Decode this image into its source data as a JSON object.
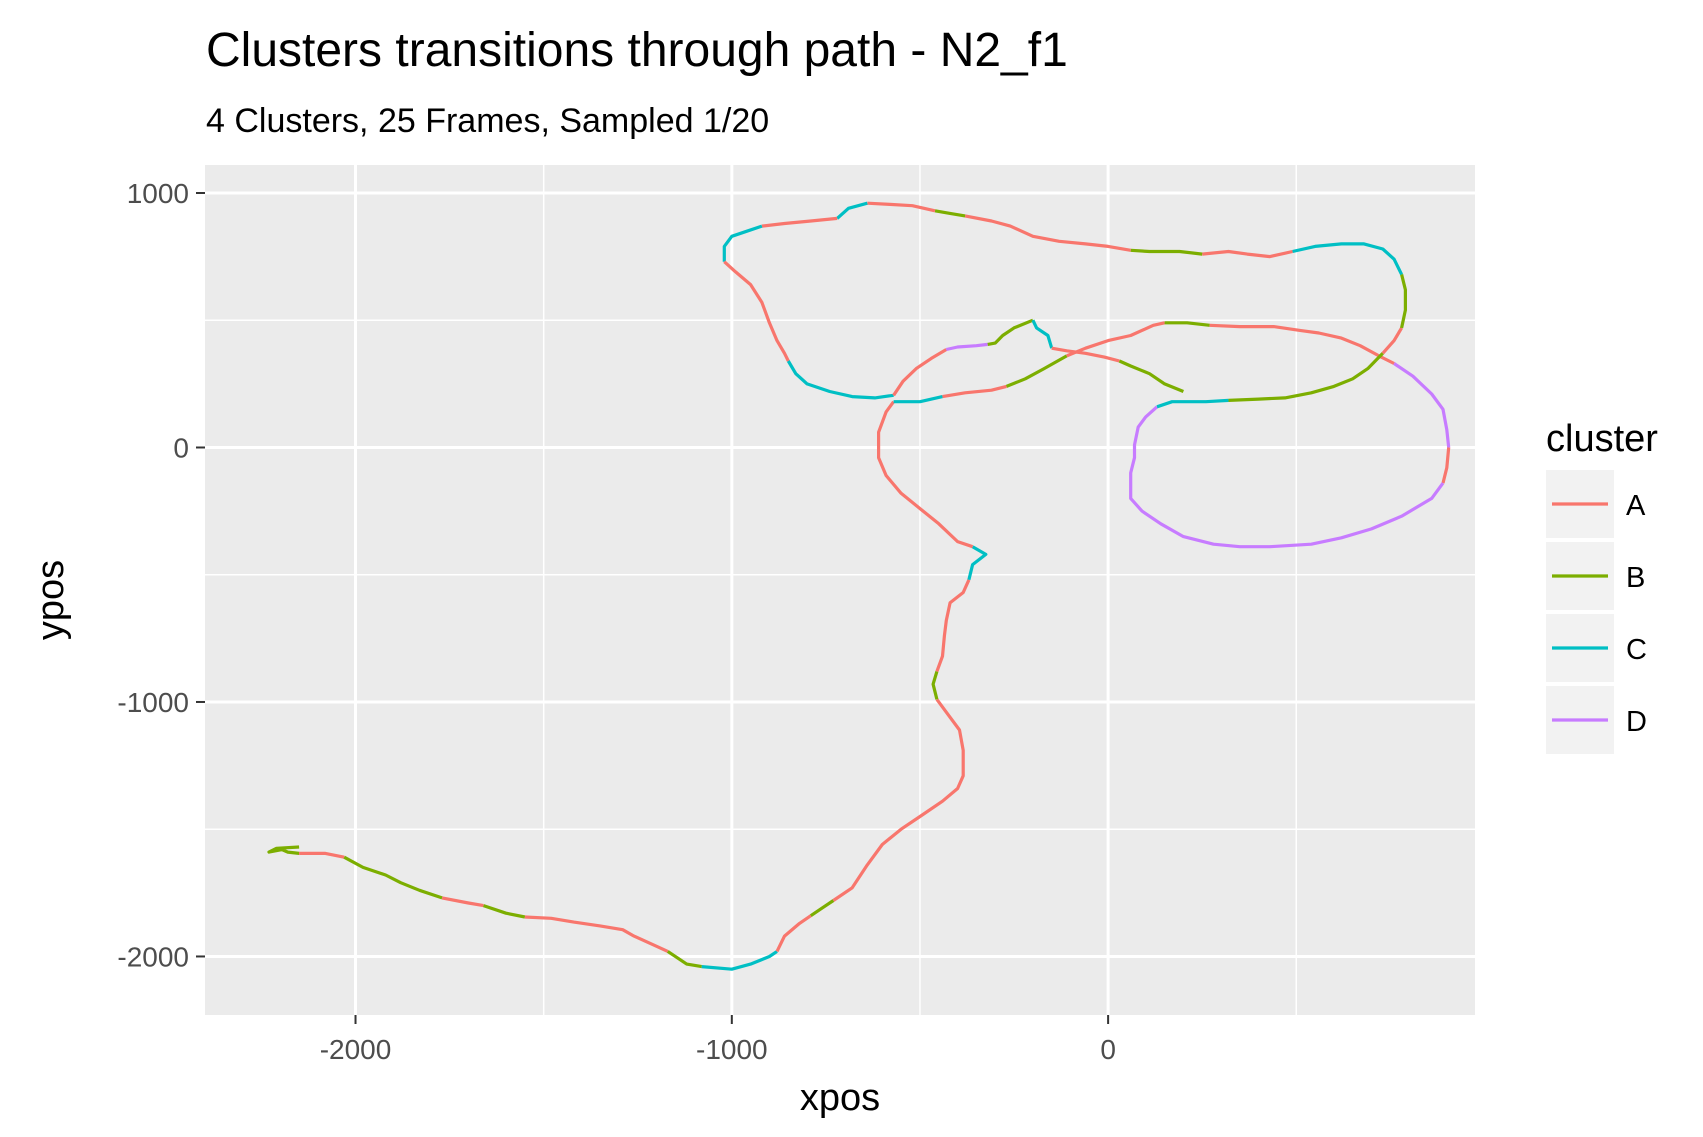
{
  "chart_data": {
    "type": "line",
    "title": "Clusters transitions through path - N2_f1",
    "subtitle": "4 Clusters, 25 Frames, Sampled 1/20",
    "xlabel": "xpos",
    "ylabel": "ypos",
    "xlim": [
      -2400,
      975
    ],
    "ylim": [
      -2230,
      1110
    ],
    "x_ticks": [
      -2000,
      -1000,
      0
    ],
    "x_tick_labels": [
      "-2000",
      "-1000",
      "0"
    ],
    "y_ticks": [
      -2000,
      -1000,
      0,
      1000
    ],
    "y_tick_labels": [
      "-2000",
      "-1000",
      "0",
      "1000"
    ],
    "grid": true,
    "legend": {
      "title": "cluster",
      "position": "right"
    },
    "colors": {
      "A": "#F8766D",
      "B": "#7CAE00",
      "C": "#00BFC4",
      "D": "#C77CFF"
    },
    "series": [
      {
        "name": "A"
      },
      {
        "name": "B"
      },
      {
        "name": "C"
      },
      {
        "name": "D"
      }
    ],
    "path": [
      {
        "cluster": "B",
        "points": [
          [
            -2150,
            -1570
          ],
          [
            -2210,
            -1575
          ],
          [
            -2230,
            -1590
          ],
          [
            -2195,
            -1580
          ],
          [
            -2180,
            -1590
          ],
          [
            -2150,
            -1595
          ]
        ]
      },
      {
        "cluster": "A",
        "points": [
          [
            -2150,
            -1595
          ],
          [
            -2080,
            -1595
          ],
          [
            -2030,
            -1610
          ]
        ]
      },
      {
        "cluster": "B",
        "points": [
          [
            -2030,
            -1610
          ],
          [
            -1980,
            -1650
          ],
          [
            -1920,
            -1680
          ],
          [
            -1880,
            -1710
          ],
          [
            -1830,
            -1740
          ],
          [
            -1770,
            -1770
          ]
        ]
      },
      {
        "cluster": "A",
        "points": [
          [
            -1770,
            -1770
          ],
          [
            -1700,
            -1790
          ],
          [
            -1660,
            -1800
          ]
        ]
      },
      {
        "cluster": "B",
        "points": [
          [
            -1660,
            -1800
          ],
          [
            -1600,
            -1830
          ],
          [
            -1550,
            -1845
          ]
        ]
      },
      {
        "cluster": "A",
        "points": [
          [
            -1550,
            -1845
          ],
          [
            -1480,
            -1850
          ],
          [
            -1420,
            -1865
          ],
          [
            -1350,
            -1880
          ],
          [
            -1290,
            -1895
          ],
          [
            -1260,
            -1920
          ],
          [
            -1200,
            -1960
          ],
          [
            -1170,
            -1980
          ]
        ]
      },
      {
        "cluster": "B",
        "points": [
          [
            -1170,
            -1980
          ],
          [
            -1120,
            -2030
          ],
          [
            -1080,
            -2040
          ]
        ]
      },
      {
        "cluster": "C",
        "points": [
          [
            -1080,
            -2040
          ],
          [
            -1000,
            -2050
          ],
          [
            -950,
            -2030
          ],
          [
            -900,
            -2000
          ],
          [
            -880,
            -1980
          ]
        ]
      },
      {
        "cluster": "A",
        "points": [
          [
            -880,
            -1980
          ],
          [
            -860,
            -1920
          ],
          [
            -820,
            -1870
          ],
          [
            -790,
            -1840
          ]
        ]
      },
      {
        "cluster": "B",
        "points": [
          [
            -790,
            -1840
          ],
          [
            -760,
            -1810
          ],
          [
            -730,
            -1780
          ]
        ]
      },
      {
        "cluster": "A",
        "points": [
          [
            -730,
            -1780
          ],
          [
            -680,
            -1730
          ],
          [
            -640,
            -1640
          ],
          [
            -600,
            -1560
          ],
          [
            -550,
            -1500
          ],
          [
            -500,
            -1450
          ],
          [
            -440,
            -1390
          ],
          [
            -400,
            -1340
          ],
          [
            -385,
            -1290
          ],
          [
            -385,
            -1190
          ],
          [
            -395,
            -1110
          ],
          [
            -430,
            -1040
          ],
          [
            -455,
            -990
          ]
        ]
      },
      {
        "cluster": "B",
        "points": [
          [
            -455,
            -990
          ],
          [
            -465,
            -930
          ],
          [
            -455,
            -880
          ]
        ]
      },
      {
        "cluster": "A",
        "points": [
          [
            -455,
            -880
          ],
          [
            -440,
            -820
          ],
          [
            -435,
            -740
          ],
          [
            -430,
            -680
          ],
          [
            -420,
            -610
          ],
          [
            -385,
            -570
          ],
          [
            -370,
            -520
          ]
        ]
      },
      {
        "cluster": "C",
        "points": [
          [
            -370,
            -520
          ],
          [
            -360,
            -460
          ],
          [
            -325,
            -420
          ],
          [
            -360,
            -390
          ]
        ]
      },
      {
        "cluster": "A",
        "points": [
          [
            -360,
            -390
          ],
          [
            -400,
            -370
          ],
          [
            -450,
            -300
          ],
          [
            -500,
            -240
          ],
          [
            -550,
            -180
          ],
          [
            -590,
            -110
          ],
          [
            -610,
            -40
          ],
          [
            -610,
            60
          ],
          [
            -590,
            140
          ],
          [
            -570,
            180
          ]
        ]
      },
      {
        "cluster": "C",
        "points": [
          [
            -570,
            180
          ],
          [
            -500,
            180
          ],
          [
            -440,
            200
          ]
        ]
      },
      {
        "cluster": "A",
        "points": [
          [
            -440,
            200
          ],
          [
            -380,
            215
          ],
          [
            -310,
            225
          ],
          [
            -270,
            240
          ]
        ]
      },
      {
        "cluster": "B",
        "points": [
          [
            -270,
            240
          ],
          [
            -220,
            270
          ],
          [
            -170,
            310
          ],
          [
            -110,
            360
          ]
        ]
      },
      {
        "cluster": "A",
        "points": [
          [
            -110,
            360
          ],
          [
            -60,
            390
          ],
          [
            0,
            420
          ],
          [
            60,
            440
          ],
          [
            120,
            480
          ],
          [
            150,
            490
          ]
        ]
      },
      {
        "cluster": "B",
        "points": [
          [
            150,
            490
          ],
          [
            210,
            490
          ],
          [
            270,
            480
          ]
        ]
      },
      {
        "cluster": "A",
        "points": [
          [
            270,
            480
          ],
          [
            350,
            475
          ],
          [
            440,
            475
          ],
          [
            510,
            460
          ],
          [
            560,
            450
          ],
          [
            620,
            430
          ],
          [
            670,
            400
          ],
          [
            720,
            360
          ],
          [
            760,
            330
          ]
        ]
      },
      {
        "cluster": "D",
        "points": [
          [
            760,
            330
          ],
          [
            810,
            280
          ],
          [
            860,
            210
          ],
          [
            890,
            150
          ],
          [
            900,
            70
          ],
          [
            905,
            0
          ]
        ]
      },
      {
        "cluster": "A",
        "points": [
          [
            905,
            0
          ],
          [
            900,
            -80
          ],
          [
            890,
            -140
          ]
        ]
      },
      {
        "cluster": "D",
        "points": [
          [
            890,
            -140
          ],
          [
            860,
            -200
          ],
          [
            780,
            -270
          ],
          [
            700,
            -320
          ],
          [
            620,
            -355
          ],
          [
            540,
            -380
          ],
          [
            430,
            -390
          ],
          [
            350,
            -390
          ],
          [
            280,
            -380
          ],
          [
            200,
            -350
          ],
          [
            140,
            -300
          ],
          [
            90,
            -250
          ],
          [
            60,
            -200
          ],
          [
            60,
            -100
          ],
          [
            70,
            -40
          ],
          [
            70,
            10
          ],
          [
            80,
            80
          ],
          [
            100,
            120
          ],
          [
            130,
            160
          ]
        ]
      },
      {
        "cluster": "C",
        "points": [
          [
            130,
            160
          ],
          [
            170,
            180
          ],
          [
            210,
            180
          ],
          [
            260,
            180
          ],
          [
            320,
            185
          ]
        ]
      },
      {
        "cluster": "B",
        "points": [
          [
            320,
            185
          ],
          [
            400,
            190
          ],
          [
            470,
            195
          ],
          [
            540,
            215
          ],
          [
            600,
            240
          ],
          [
            650,
            270
          ],
          [
            690,
            310
          ],
          [
            730,
            370
          ]
        ]
      },
      {
        "cluster": "A",
        "points": [
          [
            730,
            370
          ],
          [
            760,
            420
          ],
          [
            780,
            470
          ]
        ]
      },
      {
        "cluster": "B",
        "points": [
          [
            780,
            470
          ],
          [
            790,
            540
          ],
          [
            790,
            620
          ],
          [
            780,
            680
          ]
        ]
      },
      {
        "cluster": "C",
        "points": [
          [
            780,
            680
          ],
          [
            760,
            740
          ],
          [
            730,
            780
          ],
          [
            680,
            800
          ],
          [
            620,
            800
          ],
          [
            550,
            790
          ],
          [
            490,
            770
          ]
        ]
      },
      {
        "cluster": "A",
        "points": [
          [
            490,
            770
          ],
          [
            430,
            750
          ],
          [
            370,
            760
          ],
          [
            320,
            770
          ],
          [
            250,
            760
          ]
        ]
      },
      {
        "cluster": "B",
        "points": [
          [
            250,
            760
          ],
          [
            190,
            770
          ],
          [
            110,
            770
          ],
          [
            60,
            775
          ]
        ]
      },
      {
        "cluster": "A",
        "points": [
          [
            60,
            775
          ],
          [
            0,
            790
          ],
          [
            -60,
            800
          ],
          [
            -130,
            810
          ],
          [
            -200,
            830
          ],
          [
            -260,
            870
          ],
          [
            -310,
            890
          ],
          [
            -380,
            910
          ]
        ]
      },
      {
        "cluster": "B",
        "points": [
          [
            -380,
            910
          ],
          [
            -420,
            920
          ],
          [
            -460,
            930
          ]
        ]
      },
      {
        "cluster": "A",
        "points": [
          [
            -460,
            930
          ],
          [
            -520,
            950
          ],
          [
            -580,
            955
          ],
          [
            -640,
            960
          ]
        ]
      },
      {
        "cluster": "C",
        "points": [
          [
            -640,
            960
          ],
          [
            -690,
            940
          ],
          [
            -720,
            900
          ]
        ]
      },
      {
        "cluster": "A",
        "points": [
          [
            -720,
            900
          ],
          [
            -790,
            890
          ],
          [
            -860,
            880
          ],
          [
            -920,
            870
          ]
        ]
      },
      {
        "cluster": "C",
        "points": [
          [
            -920,
            870
          ],
          [
            -960,
            850
          ],
          [
            -1000,
            830
          ],
          [
            -1020,
            790
          ],
          [
            -1020,
            730
          ]
        ]
      },
      {
        "cluster": "A",
        "points": [
          [
            -1020,
            730
          ],
          [
            -990,
            690
          ],
          [
            -950,
            640
          ],
          [
            -920,
            570
          ],
          [
            -900,
            490
          ],
          [
            -880,
            420
          ],
          [
            -860,
            370
          ],
          [
            -850,
            340
          ]
        ]
      },
      {
        "cluster": "C",
        "points": [
          [
            -850,
            340
          ],
          [
            -830,
            290
          ],
          [
            -800,
            250
          ],
          [
            -740,
            220
          ],
          [
            -680,
            200
          ],
          [
            -620,
            195
          ],
          [
            -570,
            205
          ]
        ]
      },
      {
        "cluster": "A",
        "points": [
          [
            -570,
            205
          ],
          [
            -545,
            260
          ],
          [
            -510,
            310
          ],
          [
            -470,
            350
          ],
          [
            -430,
            385
          ]
        ]
      },
      {
        "cluster": "D",
        "points": [
          [
            -430,
            385
          ],
          [
            -400,
            395
          ],
          [
            -350,
            400
          ],
          [
            -320,
            405
          ]
        ]
      },
      {
        "cluster": "B",
        "points": [
          [
            -320,
            405
          ],
          [
            -300,
            410
          ],
          [
            -280,
            440
          ],
          [
            -250,
            470
          ],
          [
            -200,
            500
          ]
        ]
      },
      {
        "cluster": "C",
        "points": [
          [
            -200,
            500
          ],
          [
            -190,
            470
          ],
          [
            -160,
            440
          ],
          [
            -150,
            390
          ]
        ]
      },
      {
        "cluster": "A",
        "points": [
          [
            -150,
            390
          ],
          [
            -110,
            380
          ],
          [
            -60,
            370
          ],
          [
            -10,
            355
          ],
          [
            30,
            340
          ]
        ]
      },
      {
        "cluster": "B",
        "points": [
          [
            30,
            340
          ],
          [
            60,
            320
          ],
          [
            110,
            290
          ],
          [
            150,
            250
          ],
          [
            200,
            220
          ]
        ]
      }
    ]
  }
}
